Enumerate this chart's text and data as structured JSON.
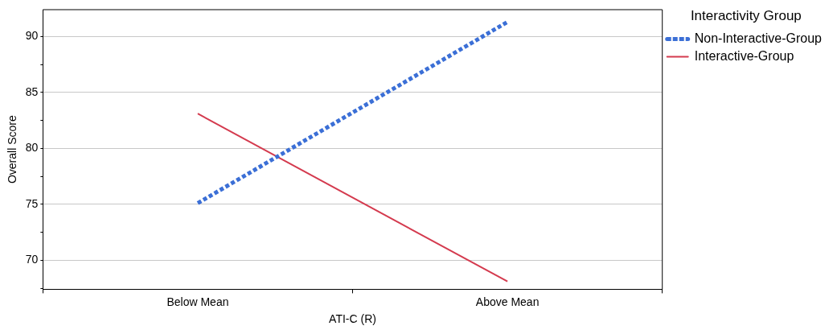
{
  "chart_data": {
    "type": "line",
    "xlabel": "ATI-C (R)",
    "ylabel": "Overall Score",
    "legend_title": "Interactivity Group",
    "categories": [
      "Below Mean",
      "Above Mean"
    ],
    "series": [
      {
        "name": "Non-Interactive-Group",
        "color": "#3b6fd6",
        "values": [
          75.1,
          91.3
        ],
        "line_style": "dotted"
      },
      {
        "name": "Interactive-Group",
        "color": "#d43a4e",
        "values": [
          83.1,
          68.1
        ],
        "line_style": "solid"
      }
    ],
    "ylim": [
      67.4,
      92.4
    ],
    "yticks": [
      {
        "value": 67.5,
        "label": null
      },
      70,
      {
        "value": 72.5,
        "label": null
      },
      75,
      {
        "value": 77.5,
        "label": null
      },
      80,
      {
        "value": 82.5,
        "label": null
      },
      85,
      {
        "value": 87.5,
        "label": null
      },
      90
    ],
    "grid": "y",
    "legend": "top right",
    "marker": "none"
  }
}
